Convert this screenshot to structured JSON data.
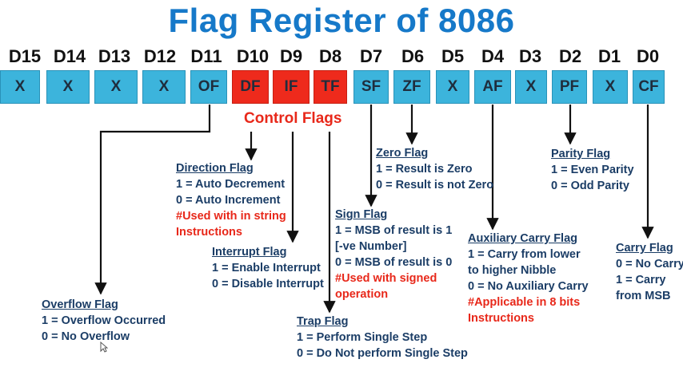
{
  "title": "Flag Register of 8086",
  "bits": [
    {
      "label": "D15",
      "value": "X"
    },
    {
      "label": "D14",
      "value": "X"
    },
    {
      "label": "D13",
      "value": "X"
    },
    {
      "label": "D12",
      "value": "X"
    },
    {
      "label": "D11",
      "value": "OF"
    },
    {
      "label": "D10",
      "value": "DF"
    },
    {
      "label": "D9",
      "value": "IF"
    },
    {
      "label": "D8",
      "value": "TF"
    },
    {
      "label": "D7",
      "value": "SF"
    },
    {
      "label": "D6",
      "value": "ZF"
    },
    {
      "label": "D5",
      "value": "X"
    },
    {
      "label": "D4",
      "value": "AF"
    },
    {
      "label": "D3",
      "value": "X"
    },
    {
      "label": "D2",
      "value": "PF"
    },
    {
      "label": "D1",
      "value": "X"
    },
    {
      "label": "D0",
      "value": "CF"
    }
  ],
  "control_flags_label": "Control Flags",
  "colors": {
    "title": "#1679c9",
    "cell": "#3cb4dc",
    "control_cell": "#ee2a1c",
    "text": "#1b3d66",
    "note": "#e8281a"
  },
  "flags": {
    "direction": {
      "title": "Direction Flag",
      "lines": [
        "1 = Auto Decrement",
        "0 = Auto Increment"
      ],
      "notes": [
        "#Used with in string",
        "Instructions"
      ]
    },
    "interrupt": {
      "title": "Interrupt Flag",
      "lines": [
        "1 = Enable Interrupt",
        "0 = Disable Interrupt"
      ]
    },
    "overflow": {
      "title": "Overflow Flag",
      "lines": [
        "1 = Overflow Occurred",
        "0 = No Overflow"
      ]
    },
    "trap": {
      "title": "Trap Flag",
      "lines": [
        "1 = Perform Single Step",
        "0 = Do Not perform Single Step"
      ]
    },
    "zero": {
      "title": "Zero Flag",
      "lines": [
        "1 = Result is Zero",
        "0 = Result is not Zero"
      ]
    },
    "sign": {
      "title": "Sign Flag",
      "lines": [
        "1 = MSB of result is 1",
        "[-ve Number]",
        "0 = MSB of result is 0"
      ],
      "notes": [
        "#Used with signed",
        "operation"
      ]
    },
    "parity": {
      "title": "Parity Flag",
      "lines": [
        "1 = Even Parity",
        "0 = Odd Parity"
      ]
    },
    "auxiliary": {
      "title": "Auxiliary Carry Flag",
      "lines": [
        "1 = Carry from lower",
        "to higher Nibble",
        "0 = No Auxiliary Carry"
      ],
      "notes": [
        "#Applicable in 8 bits",
        "Instructions"
      ]
    },
    "carry": {
      "title": "Carry Flag",
      "lines": [
        "0 = No Carry",
        "1 = Carry",
        "from MSB"
      ]
    }
  }
}
